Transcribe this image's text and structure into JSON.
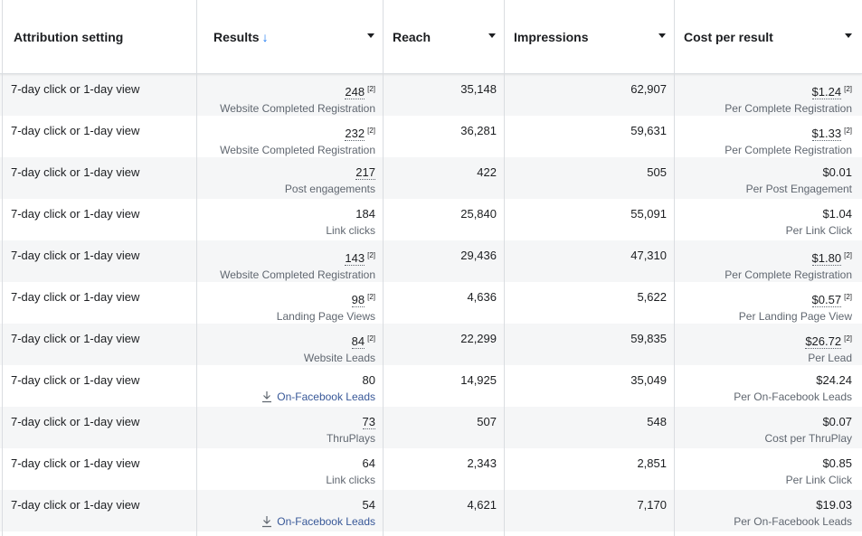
{
  "headers": {
    "attribution": "Attribution setting",
    "results": "Results",
    "reach": "Reach",
    "impressions": "Impressions",
    "cost_per_result": "Cost per result",
    "sort_arrow": "↓"
  },
  "rows": [
    {
      "attribution": "7-day click or 1-day view",
      "result": "248",
      "result_note": "[2]",
      "result_label": "Website Completed Registration",
      "reach": "35,148",
      "impressions": "62,907",
      "cost": "$1.24",
      "cost_note": "[2]",
      "cost_label": "Per Complete Registration"
    },
    {
      "attribution": "7-day click or 1-day view",
      "result": "232",
      "result_note": "[2]",
      "result_label": "Website Completed Registration",
      "reach": "36,281",
      "impressions": "59,631",
      "cost": "$1.33",
      "cost_note": "[2]",
      "cost_label": "Per Complete Registration"
    },
    {
      "attribution": "7-day click or 1-day view",
      "result": "217",
      "result_note": "",
      "result_label": "Post engagements",
      "reach": "422",
      "impressions": "505",
      "cost": "$0.01",
      "cost_note": "",
      "cost_label": "Per Post Engagement"
    },
    {
      "attribution": "7-day click or 1-day view",
      "result": "184",
      "result_note": "",
      "result_label": "Link clicks",
      "reach": "25,840",
      "impressions": "55,091",
      "cost": "$1.04",
      "cost_note": "",
      "cost_label": "Per Link Click"
    },
    {
      "attribution": "7-day click or 1-day view",
      "result": "143",
      "result_note": "[2]",
      "result_label": "Website Completed Registration",
      "reach": "29,436",
      "impressions": "47,310",
      "cost": "$1.80",
      "cost_note": "[2]",
      "cost_label": "Per Complete Registration"
    },
    {
      "attribution": "7-day click or 1-day view",
      "result": "98",
      "result_note": "[2]",
      "result_label": "Landing Page Views",
      "reach": "4,636",
      "impressions": "5,622",
      "cost": "$0.57",
      "cost_note": "[2]",
      "cost_label": "Per Landing Page View"
    },
    {
      "attribution": "7-day click or 1-day view",
      "result": "84",
      "result_note": "[2]",
      "result_label": "Website Leads",
      "reach": "22,299",
      "impressions": "59,835",
      "cost": "$26.72",
      "cost_note": "[2]",
      "cost_label": "Per Lead"
    },
    {
      "attribution": "7-day click or 1-day view",
      "result": "80",
      "result_note": "",
      "result_label": "On-Facebook Leads",
      "reach": "14,925",
      "impressions": "35,049",
      "cost": "$24.24",
      "cost_note": "",
      "cost_label": "Per On-Facebook Leads"
    },
    {
      "attribution": "7-day click or 1-day view",
      "result": "73",
      "result_note": "",
      "result_label": "ThruPlays",
      "reach": "507",
      "impressions": "548",
      "cost": "$0.07",
      "cost_note": "",
      "cost_label": "Cost per ThruPlay"
    },
    {
      "attribution": "7-day click or 1-day view",
      "result": "64",
      "result_note": "",
      "result_label": "Link clicks",
      "reach": "2,343",
      "impressions": "2,851",
      "cost": "$0.85",
      "cost_note": "",
      "cost_label": "Per Link Click"
    },
    {
      "attribution": "7-day click or 1-day view",
      "result": "54",
      "result_note": "",
      "result_label": "On-Facebook Leads",
      "reach": "4,621",
      "impressions": "7,170",
      "cost": "$19.03",
      "cost_note": "",
      "cost_label": "Per On-Facebook Leads"
    }
  ],
  "icons": {
    "download": "download-icon",
    "sort": "arrow-down-icon",
    "dropdown": "caret-down-icon"
  },
  "colors": {
    "sort_arrow": "#1877f2",
    "link": "#385898",
    "alt_row": "#f5f6f7"
  }
}
